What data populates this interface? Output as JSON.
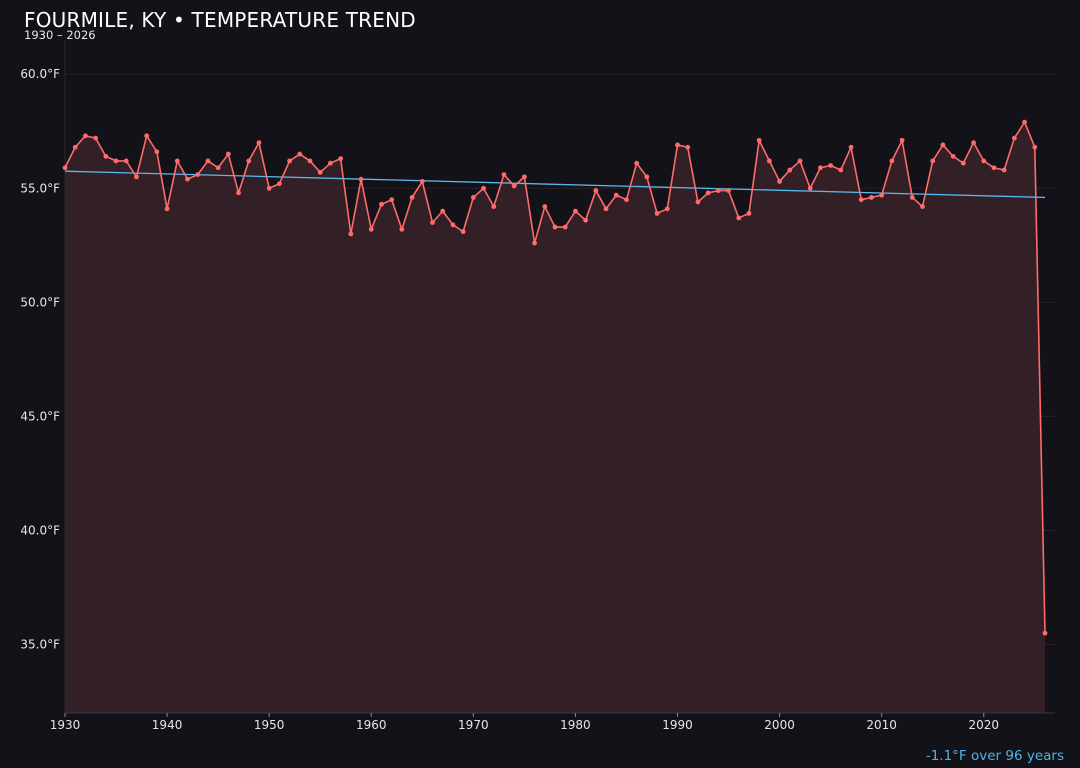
{
  "header": {
    "title": "FOURMILE, KY • TEMPERATURE TREND",
    "subtitle": "1930 – 2026"
  },
  "footnote": "-1.1°F over 96 years",
  "colors": {
    "background": "#131219",
    "series_line": "#ff6b6b",
    "area_fill": "#331f26",
    "trend_line": "#5ab8f0",
    "grid": "#2a2228",
    "text": "#e6e6e6"
  },
  "chart_data": {
    "type": "line",
    "title": "FOURMILE, KY • TEMPERATURE TREND",
    "subtitle": "1930 – 2026",
    "xlabel": "",
    "ylabel": "",
    "xlim": [
      1930,
      2026
    ],
    "ylim": [
      32.0,
      61.5
    ],
    "x_ticks": [
      1930,
      1940,
      1950,
      1960,
      1970,
      1980,
      1990,
      2000,
      2010,
      2020
    ],
    "y_ticks": [
      35.0,
      40.0,
      45.0,
      50.0,
      55.0,
      60.0
    ],
    "y_tick_labels": [
      "35.0°F",
      "40.0°F",
      "45.0°F",
      "50.0°F",
      "55.0°F",
      "60.0°F"
    ],
    "grid": true,
    "area_fill": true,
    "series": [
      {
        "x": [
          1930,
          1931,
          1932,
          1933,
          1934,
          1935,
          1936,
          1937,
          1938,
          1939,
          1940,
          1941,
          1942,
          1943,
          1944,
          1945,
          1946,
          1947,
          1948,
          1949,
          1950,
          1951,
          1952,
          1953,
          1954,
          1955,
          1956,
          1957,
          1958,
          1959,
          1960,
          1961,
          1962,
          1963,
          1964,
          1965,
          1966,
          1967,
          1968,
          1969,
          1970,
          1971,
          1972,
          1973,
          1974,
          1975,
          1976,
          1977,
          1978,
          1979,
          1980,
          1981,
          1982,
          1983,
          1984,
          1985,
          1986,
          1987,
          1988,
          1989,
          1990,
          1991,
          1992,
          1993,
          1994,
          1995,
          1996,
          1997,
          1998,
          1999,
          2000,
          2001,
          2002,
          2003,
          2004,
          2005,
          2006,
          2007,
          2008,
          2009,
          2010,
          2011,
          2012,
          2013,
          2014,
          2015,
          2016,
          2017,
          2018,
          2019,
          2020,
          2021,
          2022,
          2023,
          2024,
          2025,
          2026
        ],
        "values": [
          55.9,
          56.8,
          57.3,
          57.2,
          56.4,
          56.2,
          56.2,
          55.5,
          57.3,
          56.6,
          54.1,
          56.2,
          55.4,
          55.6,
          56.2,
          55.9,
          56.5,
          54.8,
          56.2,
          57.0,
          55.0,
          55.2,
          56.2,
          56.5,
          56.2,
          55.7,
          56.1,
          56.3,
          53.0,
          55.4,
          53.2,
          54.3,
          54.5,
          53.2,
          54.6,
          55.3,
          53.5,
          54.0,
          53.4,
          53.1,
          54.6,
          55.0,
          54.2,
          55.6,
          55.1,
          55.5,
          52.6,
          54.2,
          53.3,
          53.3,
          54.0,
          53.6,
          54.9,
          54.1,
          54.7,
          54.5,
          56.1,
          55.5,
          53.9,
          54.1,
          56.9,
          56.8,
          54.4,
          54.8,
          54.9,
          54.9,
          53.7,
          53.9,
          57.1,
          56.2,
          55.3,
          55.8,
          56.2,
          55.0,
          55.9,
          56.0,
          55.8,
          56.8,
          54.5,
          54.6,
          54.7,
          56.2,
          57.1,
          54.6,
          54.2,
          56.2,
          56.9,
          56.4,
          56.1,
          57.0,
          56.2,
          55.9,
          55.8,
          57.2,
          57.9,
          56.8,
          35.5
        ]
      }
    ],
    "trend": {
      "x": [
        1930,
        2026
      ],
      "values": [
        55.75,
        54.6
      ]
    }
  }
}
